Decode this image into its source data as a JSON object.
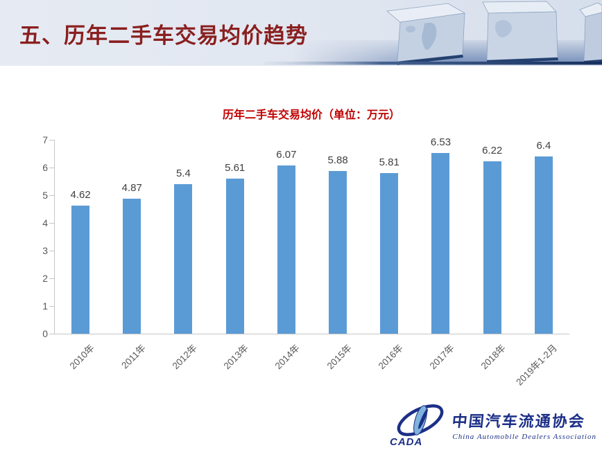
{
  "header": {
    "title": "五、历年二手车交易均价趋势"
  },
  "chart_data": {
    "type": "bar",
    "title": "历年二手车交易均价（单位：万元）",
    "categories": [
      "2010年",
      "2011年",
      "2012年",
      "2013年",
      "2014年",
      "2015年",
      "2016年",
      "2017年",
      "2018年",
      "2019年1-2月"
    ],
    "values": [
      4.62,
      4.87,
      5.4,
      5.61,
      6.07,
      5.88,
      5.81,
      6.53,
      6.22,
      6.4
    ],
    "xlabel": "",
    "ylabel": "",
    "ylim": [
      0,
      7
    ],
    "yticks": [
      0,
      1,
      2,
      3,
      4,
      5,
      6,
      7
    ],
    "grid": false,
    "legend_position": "none",
    "value_labels": true,
    "bar_color": "#5B9BD5"
  },
  "logo": {
    "cada": "CADA",
    "name_cn": "中国汽车流通协会",
    "name_en": "China Automobile Dealers Association"
  },
  "colors": {
    "header_title": "#8a1f1f",
    "chart_title": "#c00000",
    "bar": "#5B9BD5",
    "axis": "#c6c6c6",
    "tick_label": "#595959",
    "value_label": "#404040",
    "logo_navy": "#1c2f87"
  }
}
